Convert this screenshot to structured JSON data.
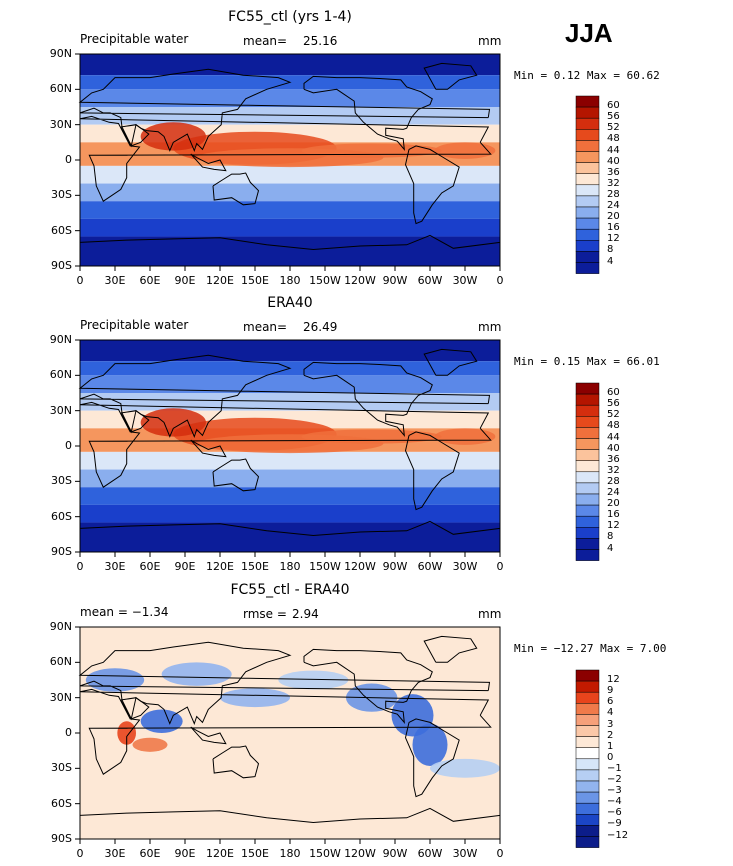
{
  "season": "JJA",
  "colorbar_fields": [
    "60",
    "56",
    "52",
    "48",
    "44",
    "40",
    "36",
    "32",
    "28",
    "24",
    "20",
    "16",
    "12",
    "8",
    "4"
  ],
  "colorbar_diff": [
    "12",
    "9",
    "6",
    "4",
    "3",
    "2",
    "1",
    "0",
    "−1",
    "−2",
    "−3",
    "−4",
    "−6",
    "−9",
    "−12"
  ],
  "lat_labels": [
    "90N",
    "60N",
    "30N",
    "0",
    "30S",
    "60S",
    "90S"
  ],
  "lon_labels": [
    "0",
    "30E",
    "60E",
    "90E",
    "120E",
    "150E",
    "180",
    "150W",
    "120W",
    "90W",
    "60W",
    "30W",
    "0"
  ],
  "panels": [
    {
      "title": "FC55_ctl (yrs 1-4)",
      "left_label": "Precipitable water",
      "stat_label": "mean=",
      "stat_value": "25.16",
      "units": "mm",
      "minmax": "Min =   0.12 Max =  60.62"
    },
    {
      "title": "ERA40",
      "left_label": "Precipitable water",
      "stat_label": "mean=",
      "stat_value": "26.49",
      "units": "mm",
      "minmax": "Min =   0.15 Max =  66.01"
    },
    {
      "title": "FC55_ctl - ERA40",
      "left_label": "mean =  −1.34",
      "stat_label": "rmse =",
      "stat_value": "2.94",
      "units": "mm",
      "minmax": "Min = −12.27 Max =   7.00"
    }
  ],
  "chart_data": {
    "type": "heatmap",
    "variable": "Precipitable water",
    "units": "mm",
    "season": "JJA",
    "panels": [
      {
        "name": "FC55_ctl (yrs 1-4)",
        "mean": 25.16,
        "min": 0.12,
        "max": 60.62,
        "levels": [
          4,
          8,
          12,
          16,
          20,
          24,
          28,
          32,
          36,
          40,
          44,
          48,
          52,
          56,
          60
        ]
      },
      {
        "name": "ERA40",
        "mean": 26.49,
        "min": 0.15,
        "max": 66.01,
        "levels": [
          4,
          8,
          12,
          16,
          20,
          24,
          28,
          32,
          36,
          40,
          44,
          48,
          52,
          56,
          60
        ]
      },
      {
        "name": "FC55_ctl - ERA40",
        "mean": -1.34,
        "rmse": 2.94,
        "min": -12.27,
        "max": 7.0,
        "levels": [
          -12,
          -9,
          -6,
          -4,
          -3,
          -2,
          -1,
          0,
          1,
          2,
          3,
          4,
          6,
          9,
          12
        ]
      }
    ],
    "x_ticks": [
      "0",
      "30E",
      "60E",
      "90E",
      "120E",
      "150E",
      "180",
      "150W",
      "120W",
      "90W",
      "60W",
      "30W",
      "0"
    ],
    "y_ticks": [
      "90N",
      "60N",
      "30N",
      "0",
      "30S",
      "60S",
      "90S"
    ]
  },
  "colors": {
    "field_scale": [
      "#8b0000",
      "#b41500",
      "#d42e0e",
      "#e64a1c",
      "#f0703c",
      "#f5965e",
      "#fbc39c",
      "#fde8d6",
      "#dbe7f8",
      "#b3cbf3",
      "#8aaeee",
      "#5b88e8",
      "#2f62dc",
      "#1a3fcb",
      "#0c1d9a"
    ],
    "diff_scale": [
      "#8b0000",
      "#c21a00",
      "#e8441c",
      "#f07a4a",
      "#f6a07a",
      "#fbc8a8",
      "#fde8d6",
      "#ffffff",
      "#d6e6f8",
      "#b6cff3",
      "#92b4ee",
      "#6b95e6",
      "#3d6edc",
      "#1b45c6",
      "#0c1d8a"
    ]
  }
}
